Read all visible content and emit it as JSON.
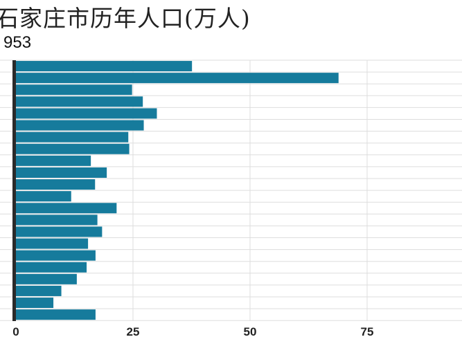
{
  "chart_data": {
    "type": "bar",
    "orientation": "horizontal",
    "title": "石家庄市历年人口(万人)",
    "subtitle": "953",
    "values": [
      37.6,
      68.9,
      24.8,
      27.1,
      30.1,
      27.3,
      24.0,
      24.2,
      16.0,
      19.4,
      16.9,
      11.8,
      21.5,
      17.4,
      18.4,
      15.4,
      17.0,
      15.1,
      13.0,
      9.7,
      8.0,
      17.0
    ],
    "xlim": [
      0,
      95
    ],
    "xticks": [
      "0",
      "25",
      "50",
      "75"
    ],
    "xlabel": "",
    "ylabel": "",
    "grid": true,
    "bar_color": "#167b9c"
  }
}
